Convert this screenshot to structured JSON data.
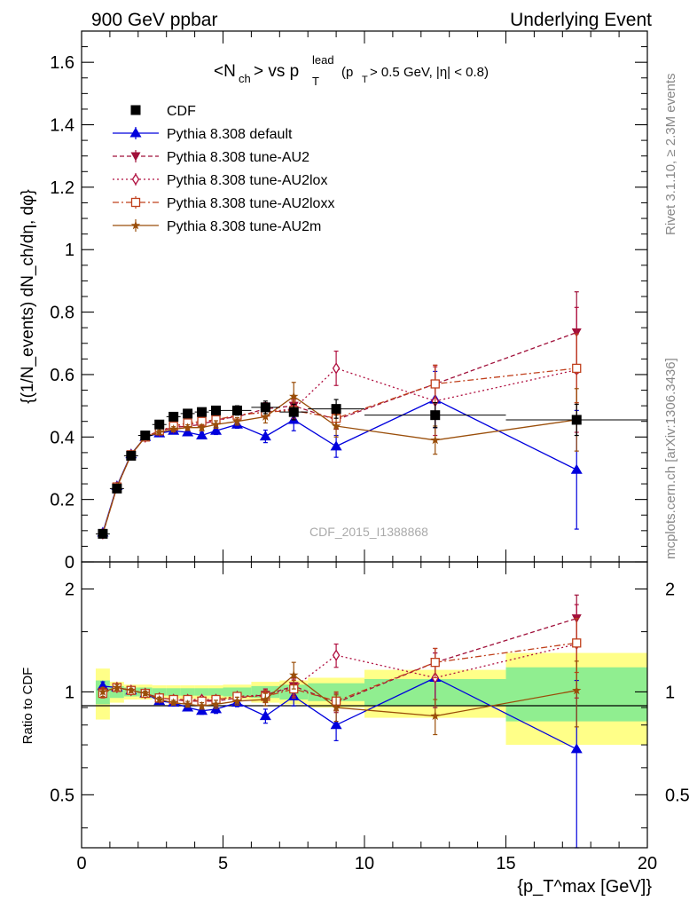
{
  "header": {
    "left": "900 GeV ppbar",
    "right": "Underlying Event"
  },
  "title": {
    "main": "<N",
    "sub_ch": "ch",
    "mid": "> vs p",
    "sup_lead": "lead",
    "sub_T": "T",
    "cut_open": "(p",
    "cut_T": "T",
    "cut_rest": " > 0.5 GeV, |η| < 0.8)"
  },
  "watermark": "CDF_2015_I1388868",
  "side_text": {
    "rivet": "Rivet 3.1.10, ≥ 2.3M events",
    "mcplots": "mcplots.cern.ch [arXiv:1306.3436]"
  },
  "ylabel_main": "{(1/N_events) dN_ch/dη, dφ}",
  "ylabel_ratio": "Ratio to CDF",
  "xlabel": "{p_T^max [GeV]}",
  "colors": {
    "data": "#000000",
    "default": "#0000dd",
    "au2": "#a0103a",
    "au2lox": "#b01040",
    "au2loxx": "#c0401c",
    "au2m": "#9a4e0a",
    "band_inner": "#90ee90",
    "band_outer": "#ffff88"
  },
  "chart_data": [
    {
      "type": "scatter",
      "panel": "main",
      "xlim": [
        0,
        20
      ],
      "ylim": [
        0,
        1.7
      ],
      "x_ticks": [
        0,
        5,
        10,
        15,
        20
      ],
      "y_ticks": [
        0,
        0.2,
        0.4,
        0.6,
        0.8,
        1,
        1.2,
        1.4,
        1.6
      ],
      "y_tick_labels": [
        "0",
        "0.2",
        "0.4",
        "0.6",
        "0.8",
        "1",
        "1.2",
        "1.4",
        "1.6"
      ],
      "legend_position": "top-left",
      "x": [
        0.75,
        1.25,
        1.75,
        2.25,
        2.75,
        3.25,
        3.75,
        4.25,
        4.75,
        5.5,
        6.5,
        7.5,
        9.0,
        12.5,
        17.5
      ],
      "x_err": [
        0.25,
        0.25,
        0.25,
        0.25,
        0.25,
        0.25,
        0.25,
        0.25,
        0.25,
        0.5,
        0.5,
        0.5,
        1.0,
        2.5,
        2.5
      ],
      "series": [
        {
          "name": "CDF",
          "key": "data",
          "marker": "square",
          "dash": "none",
          "values": [
            0.09,
            0.235,
            0.34,
            0.405,
            0.44,
            0.465,
            0.475,
            0.48,
            0.485,
            0.485,
            0.495,
            0.48,
            0.49,
            0.47,
            0.455
          ],
          "errors": [
            0.005,
            0.008,
            0.01,
            0.01,
            0.01,
            0.01,
            0.012,
            0.012,
            0.012,
            0.015,
            0.02,
            0.025,
            0.03,
            0.04,
            0.05
          ]
        },
        {
          "name": "Pythia 8.308 default",
          "key": "default",
          "marker": "triangle-up",
          "dash": "none",
          "values": [
            0.094,
            0.243,
            0.345,
            0.4,
            0.412,
            0.42,
            0.415,
            0.405,
            0.42,
            0.44,
            0.402,
            0.455,
            0.37,
            0.52,
            0.295
          ],
          "errors": [
            0.003,
            0.004,
            0.005,
            0.006,
            0.007,
            0.008,
            0.009,
            0.01,
            0.012,
            0.012,
            0.02,
            0.035,
            0.035,
            0.09,
            0.19
          ]
        },
        {
          "name": "Pythia 8.308 tune-AU2",
          "key": "au2",
          "marker": "triangle-down",
          "dash": "5,3",
          "values": [
            0.09,
            0.24,
            0.343,
            0.4,
            0.42,
            0.43,
            0.435,
            0.44,
            0.455,
            0.465,
            0.49,
            0.5,
            0.455,
            0.57,
            0.735
          ],
          "errors": [
            0.003,
            0.004,
            0.005,
            0.006,
            0.007,
            0.008,
            0.009,
            0.01,
            0.012,
            0.012,
            0.02,
            0.03,
            0.03,
            0.06,
            0.13
          ]
        },
        {
          "name": "Pythia 8.308 tune-AU2lox",
          "key": "au2lox",
          "marker": "diamond",
          "dash": "2,3",
          "values": [
            0.09,
            0.24,
            0.343,
            0.4,
            0.42,
            0.43,
            0.44,
            0.445,
            0.45,
            0.47,
            0.48,
            0.49,
            0.62,
            0.515,
            0.615
          ],
          "errors": [
            0.003,
            0.004,
            0.005,
            0.006,
            0.007,
            0.008,
            0.009,
            0.01,
            0.012,
            0.012,
            0.02,
            0.03,
            0.055,
            0.11,
            0.2
          ]
        },
        {
          "name": "Pythia 8.308 tune-AU2loxx",
          "key": "au2loxx",
          "marker": "square-open",
          "dash": "7,3,2,3",
          "values": [
            0.09,
            0.24,
            0.343,
            0.4,
            0.42,
            0.435,
            0.445,
            0.45,
            0.455,
            0.47,
            0.48,
            0.485,
            0.46,
            0.57,
            0.62
          ],
          "errors": [
            0.003,
            0.004,
            0.005,
            0.006,
            0.007,
            0.008,
            0.009,
            0.01,
            0.012,
            0.012,
            0.02,
            0.03,
            0.03,
            0.06,
            0.11
          ]
        },
        {
          "name": "Pythia 8.308 tune-AU2m",
          "key": "au2m",
          "marker": "star",
          "dash": "none",
          "values": [
            0.09,
            0.24,
            0.343,
            0.4,
            0.415,
            0.425,
            0.43,
            0.43,
            0.44,
            0.45,
            0.465,
            0.53,
            0.435,
            0.39,
            0.455
          ],
          "errors": [
            0.003,
            0.004,
            0.005,
            0.006,
            0.007,
            0.008,
            0.009,
            0.01,
            0.012,
            0.012,
            0.02,
            0.045,
            0.035,
            0.045,
            0.1
          ]
        }
      ]
    },
    {
      "type": "scatter",
      "panel": "ratio",
      "xlim": [
        0,
        20
      ],
      "ylim": [
        0.35,
        2.4
      ],
      "y_scale": "log",
      "x_ticks": [
        0,
        5,
        10,
        15,
        20
      ],
      "x_tick_labels": [
        "0",
        "5",
        "10",
        "15",
        "20"
      ],
      "y_ticks": [
        0.5,
        1,
        2
      ],
      "y_tick_labels": [
        "0.5",
        "1",
        "2"
      ],
      "reference_line": 1,
      "bands": {
        "x_low": [
          0.5,
          1.0,
          1.5,
          2.0,
          2.5,
          3.0,
          3.5,
          4.0,
          4.5,
          5.0,
          6.0,
          7.0,
          8.0,
          10.0,
          15.0
        ],
        "x_high": [
          1.0,
          1.5,
          2.0,
          2.5,
          3.0,
          3.5,
          4.0,
          4.5,
          5.0,
          6.0,
          7.0,
          8.0,
          10.0,
          15.0,
          20.0
        ],
        "inner": [
          0.08,
          0.04,
          0.03,
          0.03,
          0.025,
          0.025,
          0.025,
          0.025,
          0.025,
          0.03,
          0.04,
          0.05,
          0.06,
          0.09,
          0.18
        ],
        "outer": [
          0.17,
          0.07,
          0.05,
          0.05,
          0.045,
          0.045,
          0.045,
          0.045,
          0.045,
          0.05,
          0.07,
          0.08,
          0.1,
          0.16,
          0.3
        ]
      },
      "series": [
        {
          "name": "Pythia 8.308 default",
          "key": "default",
          "values": [
            1.04,
            1.03,
            1.01,
            0.99,
            0.94,
            0.93,
            0.9,
            0.88,
            0.89,
            0.93,
            0.85,
            0.97,
            0.8,
            1.1,
            0.68
          ],
          "errors": [
            0.03,
            0.02,
            0.015,
            0.015,
            0.015,
            0.015,
            0.018,
            0.02,
            0.025,
            0.025,
            0.04,
            0.06,
            0.08,
            0.2,
            0.4
          ]
        },
        {
          "name": "Pythia 8.308 tune-AU2",
          "key": "au2",
          "values": [
            1.0,
            1.03,
            1.01,
            0.99,
            0.96,
            0.95,
            0.94,
            0.94,
            0.94,
            0.96,
            0.98,
            1.04,
            0.93,
            1.22,
            1.64
          ],
          "errors": [
            0.03,
            0.02,
            0.015,
            0.015,
            0.015,
            0.015,
            0.018,
            0.02,
            0.025,
            0.025,
            0.04,
            0.06,
            0.06,
            0.12,
            0.28
          ]
        },
        {
          "name": "Pythia 8.308 tune-AU2lox",
          "key": "au2lox",
          "values": [
            1.0,
            1.03,
            1.01,
            0.99,
            0.96,
            0.95,
            0.95,
            0.95,
            0.95,
            0.97,
            0.98,
            1.03,
            1.28,
            1.1,
            1.38
          ],
          "errors": [
            0.03,
            0.02,
            0.015,
            0.015,
            0.015,
            0.015,
            0.018,
            0.02,
            0.025,
            0.025,
            0.04,
            0.06,
            0.1,
            0.2,
            0.42
          ]
        },
        {
          "name": "Pythia 8.308 tune-AU2loxx",
          "key": "au2loxx",
          "values": [
            0.99,
            1.03,
            1.01,
            0.99,
            0.96,
            0.95,
            0.95,
            0.94,
            0.95,
            0.97,
            0.97,
            1.02,
            0.94,
            1.22,
            1.39
          ],
          "errors": [
            0.03,
            0.02,
            0.015,
            0.015,
            0.015,
            0.015,
            0.018,
            0.02,
            0.025,
            0.025,
            0.04,
            0.06,
            0.06,
            0.12,
            0.25
          ]
        },
        {
          "name": "Pythia 8.308 tune-AU2m",
          "key": "au2m",
          "values": [
            1.0,
            1.03,
            1.01,
            0.99,
            0.95,
            0.93,
            0.92,
            0.91,
            0.92,
            0.94,
            0.95,
            1.12,
            0.9,
            0.85,
            1.01
          ],
          "errors": [
            0.03,
            0.02,
            0.015,
            0.015,
            0.015,
            0.015,
            0.018,
            0.02,
            0.025,
            0.025,
            0.04,
            0.1,
            0.08,
            0.1,
            0.22
          ]
        }
      ]
    }
  ]
}
